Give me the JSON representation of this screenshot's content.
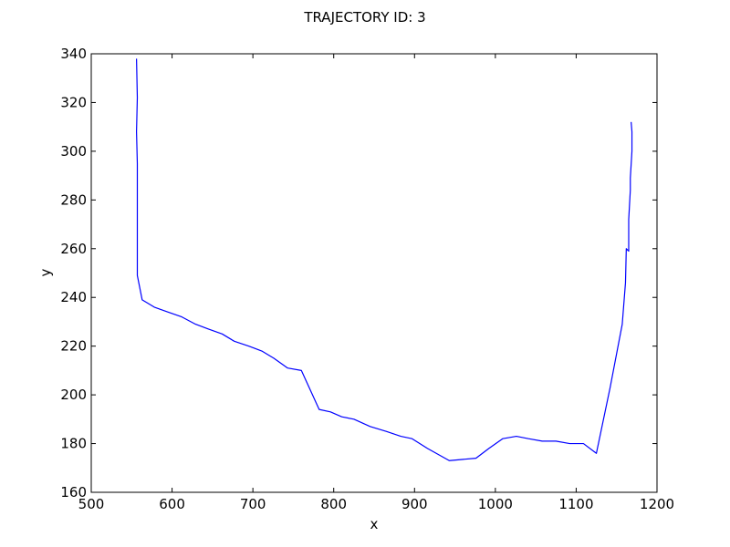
{
  "chart_data": {
    "type": "line",
    "title": "TRAJECTORY ID: 3",
    "xlabel": "x",
    "ylabel": "y",
    "xlim": [
      500,
      1200
    ],
    "ylim": [
      160,
      340
    ],
    "xticks": [
      500,
      600,
      700,
      800,
      900,
      1000,
      1100,
      1200
    ],
    "yticks": [
      160,
      180,
      200,
      220,
      240,
      260,
      280,
      300,
      320,
      340
    ],
    "grid": false,
    "series": [
      {
        "color": "#0000ff",
        "x": [
          556,
          557,
          556,
          557,
          557,
          557,
          557,
          557,
          557,
          563,
          578,
          595,
          612,
          629,
          645,
          662,
          677,
          695,
          711,
          726,
          743,
          760,
          782,
          796,
          810,
          825,
          845,
          865,
          883,
          897,
          916,
          943,
          976,
          992,
          1009,
          1026,
          1041,
          1058,
          1075,
          1092,
          1109,
          1125,
          1142,
          1157,
          1161,
          1162,
          1165,
          1165,
          1167,
          1167,
          1169,
          1169,
          1168
        ],
        "y": [
          338,
          322,
          308,
          295,
          282,
          270,
          260,
          250,
          249,
          239,
          236,
          234,
          232,
          229,
          227,
          225,
          222,
          220,
          218,
          215,
          211,
          210,
          194,
          193,
          191,
          190,
          187,
          185,
          183,
          182,
          178,
          173,
          174,
          178,
          182,
          183,
          182,
          181,
          181,
          180,
          180,
          176,
          203,
          229,
          246,
          260,
          259,
          272,
          284,
          289,
          300,
          308,
          312
        ]
      }
    ]
  }
}
